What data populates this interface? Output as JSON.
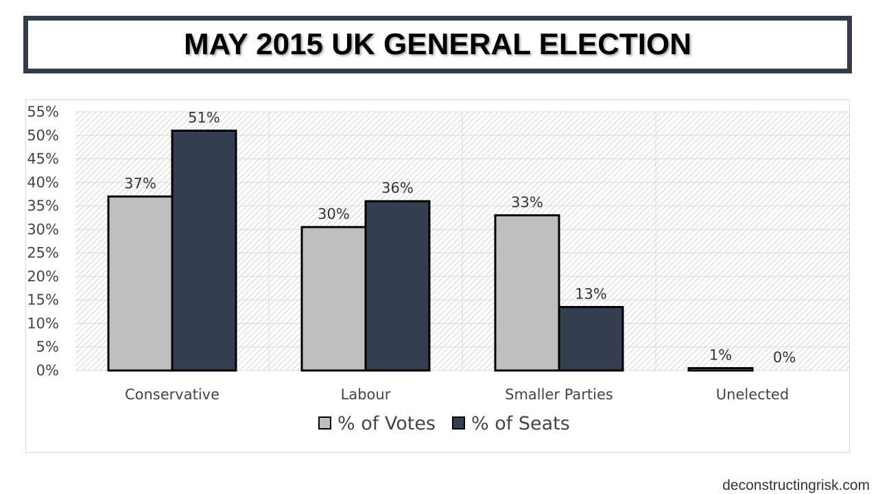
{
  "title": "MAY 2015 UK GENERAL ELECTION",
  "footer": "deconstructingrisk.com",
  "colors": {
    "votes": "#bfbfbf",
    "seats": "#333f50",
    "frame": "#323b4b"
  },
  "chart_data": {
    "type": "bar",
    "categories": [
      "Conservative",
      "Labour",
      "Smaller Parties",
      "Unelected"
    ],
    "series": [
      {
        "name": "% of Votes",
        "values": [
          37,
          30.5,
          33,
          0.5
        ],
        "labels": [
          "37%",
          "30%",
          "33%",
          "1%"
        ]
      },
      {
        "name": "% of Seats",
        "values": [
          51,
          36,
          13.5,
          0
        ],
        "labels": [
          "51%",
          "36%",
          "13%",
          "0%"
        ]
      }
    ],
    "ylim": [
      0,
      55
    ],
    "yticks": [
      "0%",
      "5%",
      "10%",
      "15%",
      "20%",
      "25%",
      "30%",
      "35%",
      "40%",
      "45%",
      "50%",
      "55%"
    ],
    "legend": "bottom"
  }
}
